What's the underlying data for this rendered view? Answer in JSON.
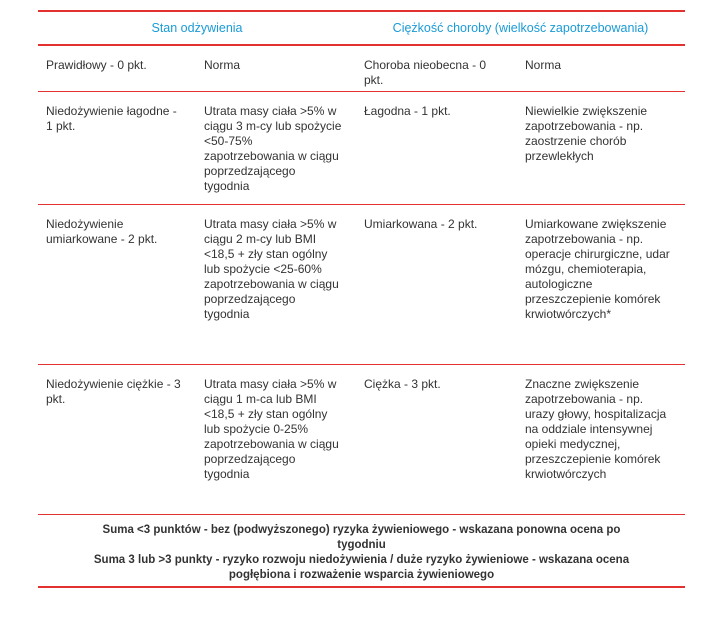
{
  "header": {
    "columns": [
      "Stan odżywienia",
      "Ciężkość choroby (wielkość zapotrzebowania)"
    ]
  },
  "table": {
    "rows": [
      [
        "Prawidłowy - 0 pkt.",
        "Norma",
        "Choroba nieobecna - 0 pkt.",
        "Norma"
      ],
      [
        "Niedożywienie łagodne - 1 pkt.",
        "Utrata masy ciała >5% w ciągu 3 m-cy lub spożycie <50-75% zapotrzebowania w ciągu poprzedzającego tygodnia",
        "Łagodna - 1 pkt.",
        "Niewielkie zwiększenie zapotrzebowania - np. zaostrzenie chorób przewlekłych"
      ],
      [
        "Niedożywienie umiarkowane - 2 pkt.",
        "Utrata masy ciała >5% w ciągu 2 m-cy lub BMI <18,5 + zły stan ogólny lub spożycie <25-60% zapotrzebowania w ciągu poprzedzającego tygodnia",
        "Umiarkowana - 2 pkt.",
        "Umiarkowane zwiększenie zapotrzebowania - np. operacje chirurgiczne, udar mózgu, chemioterapia, autologiczne przeszczepienie komórek krwiotwórczych*"
      ],
      [
        "Niedożywienie ciężkie - 3 pkt.",
        "Utrata masy ciała >5% w ciągu 1 m-ca lub BMI <18,5 + zły stan ogólny lub spożycie 0-25% zapotrzebowania w ciągu poprzedzającego tygodnia",
        "Ciężka - 3 pkt.",
        "Znaczne zwiększenie zapotrzebowania - np. urazy głowy, hospitalizacja na oddziale intensywnej opieki medycznej, przeszczepienie komórek krwiotwórczych"
      ]
    ]
  },
  "footer": {
    "lines": [
      "Suma <3 punktów - bez (podwyższonego) ryzyka żywieniowego - wskazana ponowna ocena po tygodniu",
      "Suma 3 lub >3 punkty - ryzyko rozwoju niedożywienia / duże ryzyko żywieniowe - wskazana ocena pogłębiona i rozważenie wsparcia żywieniowego"
    ]
  }
}
